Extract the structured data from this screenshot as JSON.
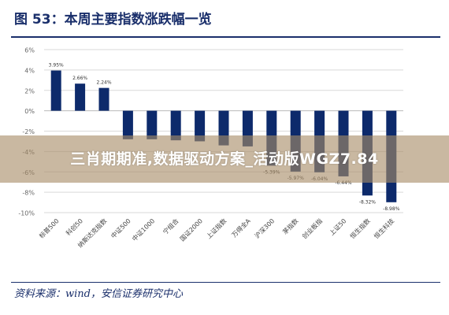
{
  "figure": {
    "title": "图 53：本周主要指数涨跌幅一览",
    "source": "资料来源：wind，安信证券研究中心"
  },
  "overlay": {
    "banner_text": "三肖期期准,数据驱动方案_活动版WGZ7.84"
  },
  "colors": {
    "bar": "#0d2a6b",
    "text": "#1a2f6b",
    "axis_text": "#666666",
    "grid": "#d9d9d9"
  },
  "chart_data": {
    "type": "bar",
    "categories": [
      "标普500",
      "科创50",
      "纳斯达克指数",
      "中证500",
      "中证1000",
      "宁组合",
      "国证2000",
      "上证指数",
      "万得全A",
      "沪深300",
      "茅指数",
      "创业板指",
      "上证50",
      "恒生指数",
      "恒生科技"
    ],
    "values": [
      3.95,
      2.66,
      2.24,
      -2.8,
      -2.8,
      -2.9,
      -3.0,
      -3.4,
      -3.5,
      -5.39,
      -5.97,
      -6.04,
      -6.44,
      -8.32,
      -8.98
    ],
    "data_labels": [
      "3.95%",
      "2.66%",
      "2.24%",
      "",
      "",
      "",
      "",
      "",
      "",
      "-5.39%",
      "-5.97%",
      "-6.04%",
      "-6.44%",
      "-8.32%",
      "-8.98%"
    ],
    "yticks": [
      6,
      4,
      2,
      0,
      -2,
      -4,
      -6,
      -8,
      -10
    ],
    "ytick_labels": [
      "6%",
      "4%",
      "2%",
      "0%",
      "-2%",
      "-4%",
      "-6%",
      "-8%",
      "-10%"
    ],
    "ylim": [
      -10,
      6
    ],
    "grid": true
  }
}
